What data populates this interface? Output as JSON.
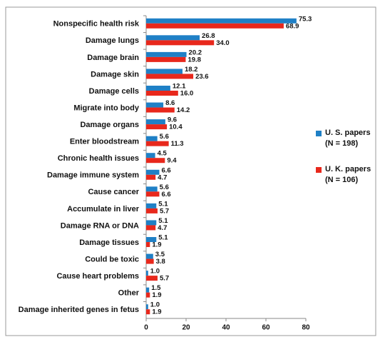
{
  "chart_data": {
    "type": "hbar",
    "categories": [
      "Nonspecific health risk",
      "Damage lungs",
      "Damage brain",
      "Damage skin",
      "Damage cells",
      "Migrate into body",
      "Damage organs",
      "Enter bloodstream",
      "Chronic health issues",
      "Damage immune system",
      "Cause cancer",
      "Accumulate in liver",
      "Damage RNA or DNA",
      "Damage tissues",
      "Could be toxic",
      "Cause heart problems",
      "Other",
      "Damage inherited genes in fetus"
    ],
    "series": [
      {
        "name": "U. S. papers (N = 198)",
        "color": "#1f80c6",
        "values": [
          75.3,
          26.8,
          20.2,
          18.2,
          12.1,
          8.6,
          9.6,
          5.6,
          4.5,
          6.6,
          5.6,
          5.1,
          5.1,
          5.1,
          3.5,
          1.0,
          1.5,
          1.0
        ],
        "value_labels": [
          "75.3",
          "26.8",
          "20.2",
          "18.2",
          "12.1",
          "8.6",
          "9.6",
          "5.6",
          "4.5",
          "6.6",
          "5.6",
          "5.1",
          "5.1",
          "5.1",
          "3.5",
          "1.0",
          "1.5",
          "1.0"
        ]
      },
      {
        "name": "U. K. papers (N = 106)",
        "color": "#e8281c",
        "values": [
          68.9,
          34.0,
          19.8,
          23.6,
          16.0,
          14.2,
          10.4,
          11.3,
          9.4,
          4.7,
          6.6,
          5.7,
          4.7,
          1.9,
          3.8,
          5.7,
          1.9,
          1.9
        ],
        "value_labels": [
          "68.9",
          "34.0",
          "19.8",
          "23.6",
          "16.0",
          "14.2",
          "10.4",
          "11.3",
          "9.4",
          "4.7",
          "6.6",
          "5.7",
          "4.7",
          "1.9",
          "3.8",
          "5.7",
          "1.9",
          "1.9"
        ]
      }
    ],
    "xlim": [
      0,
      80
    ],
    "xticks": [
      0,
      20,
      40,
      60,
      80
    ]
  }
}
